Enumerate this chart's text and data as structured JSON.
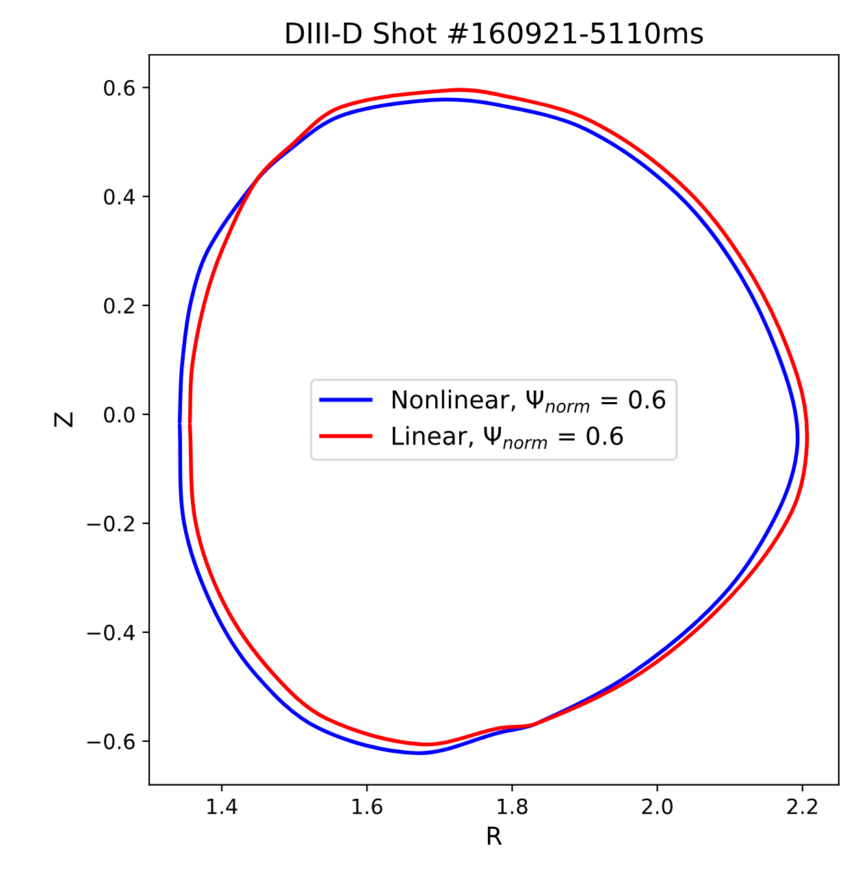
{
  "chart_data": {
    "type": "line",
    "title": "DIII-D Shot #160921-5110ms",
    "xlabel": "R",
    "ylabel": "Z",
    "series": [
      {
        "name": "Nonlinear, Ψ$_{norm}$ = 0.6",
        "color": "#0000ff",
        "x": [
          1.342,
          1.345,
          1.357,
          1.382,
          1.448,
          1.489,
          1.564,
          1.689,
          1.777,
          1.902,
          2.027,
          2.115,
          2.177,
          2.193,
          2.165,
          2.09,
          1.965,
          1.833,
          1.783,
          1.67,
          1.533,
          1.445,
          1.386,
          1.348,
          1.342
        ],
        "values": [
          -0.014,
          0.086,
          0.204,
          0.304,
          0.43,
          0.481,
          0.548,
          0.577,
          0.569,
          0.523,
          0.405,
          0.254,
          0.07,
          -0.056,
          -0.182,
          -0.333,
          -0.475,
          -0.568,
          -0.584,
          -0.622,
          -0.576,
          -0.475,
          -0.35,
          -0.199,
          -0.02
        ]
      },
      {
        "name": "Linear, Ψ$_{norm}$ = 0.6",
        "color": "#ff0000",
        "x": [
          1.356,
          1.359,
          1.376,
          1.401,
          1.448,
          1.495,
          1.564,
          1.714,
          1.777,
          1.908,
          2.04,
          2.131,
          2.193,
          2.206,
          2.184,
          2.102,
          1.977,
          1.833,
          1.783,
          1.677,
          1.545,
          1.47,
          1.404,
          1.364,
          1.356
        ],
        "values": [
          -0.014,
          0.086,
          0.204,
          0.304,
          0.43,
          0.493,
          0.564,
          0.595,
          0.588,
          0.539,
          0.413,
          0.254,
          0.07,
          -0.056,
          -0.182,
          -0.333,
          -0.475,
          -0.568,
          -0.576,
          -0.606,
          -0.559,
          -0.475,
          -0.35,
          -0.199,
          -0.02
        ]
      }
    ],
    "xlim": [
      1.3,
      2.25
    ],
    "ylim": [
      -0.68,
      0.66
    ],
    "xticks": [
      1.4,
      1.6,
      1.8,
      {
        "value": 2,
        "label": "2.0"
      },
      2.2
    ],
    "yticks": [
      {
        "value": -0.6,
        "label": "−0.6"
      },
      {
        "value": -0.4,
        "label": "−0.4"
      },
      {
        "value": -0.2,
        "label": "−0.2"
      },
      {
        "value": 0,
        "label": "0.0"
      },
      {
        "value": 0.2,
        "label": "0.2"
      },
      {
        "value": 0.4,
        "label": "0.4"
      },
      {
        "value": 0.6,
        "label": "0.6"
      }
    ],
    "legend": "center",
    "line_style": "solid",
    "marker": "none",
    "grid": false
  }
}
